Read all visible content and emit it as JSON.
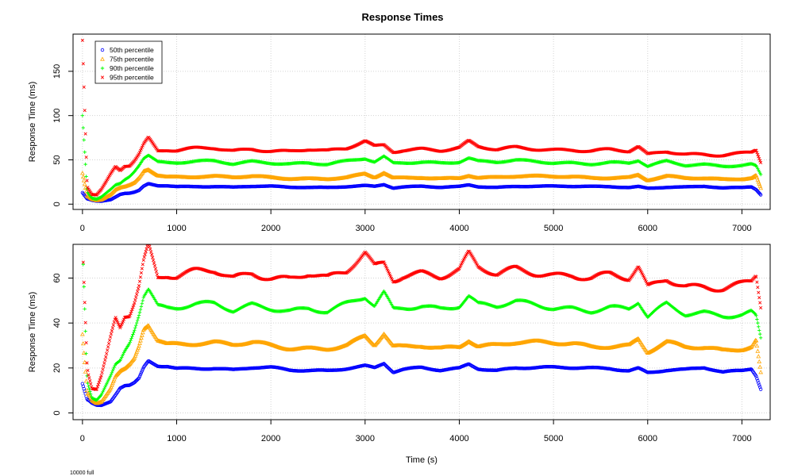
{
  "chart_data": [
    {
      "type": "scatter",
      "title": "Response Times",
      "xlabel": "",
      "ylabel": "Response Time (ms)",
      "xlim": [
        -100,
        7300
      ],
      "ylim": [
        -6,
        192
      ],
      "xticks": [
        0,
        1000,
        2000,
        3000,
        4000,
        5000,
        6000,
        7000
      ],
      "yticks": [
        0,
        50,
        100,
        150
      ],
      "grid": true,
      "legend_position": "top-left",
      "series": [
        {
          "name": "50th percentile",
          "color": "#0000ff",
          "marker": "circle",
          "x": [
            0,
            50,
            100,
            150,
            200,
            250,
            300,
            350,
            400,
            450,
            500,
            550,
            600,
            650,
            700,
            800,
            900,
            1000,
            1200,
            1400,
            1600,
            1800,
            2000,
            2200,
            2400,
            2600,
            2800,
            3000,
            3100,
            3200,
            3300,
            3400,
            3600,
            3800,
            4000,
            4100,
            4200,
            4400,
            4600,
            4800,
            5000,
            5200,
            5400,
            5600,
            5800,
            5900,
            6000,
            6200,
            6400,
            6600,
            6800,
            7000,
            7100,
            7150,
            7200
          ],
          "y": [
            13,
            6,
            4,
            3,
            3,
            4,
            5,
            8,
            11,
            12,
            12,
            13,
            15,
            20,
            23,
            21,
            21,
            20,
            20,
            20,
            19,
            20,
            20,
            19,
            19,
            19,
            20,
            21,
            20,
            22,
            18,
            19,
            20,
            19,
            20,
            22,
            20,
            19,
            20,
            20,
            20,
            20,
            20,
            20,
            19,
            20,
            18,
            19,
            19,
            20,
            18,
            19,
            20,
            17,
            11
          ]
        },
        {
          "name": "75th percentile",
          "color": "#ffa500",
          "marker": "triangle",
          "x": [
            0,
            50,
            100,
            150,
            200,
            250,
            300,
            350,
            400,
            450,
            500,
            550,
            600,
            650,
            700,
            800,
            900,
            1000,
            1200,
            1400,
            1600,
            1800,
            2000,
            2200,
            2400,
            2600,
            2800,
            3000,
            3100,
            3200,
            3300,
            3400,
            3600,
            3800,
            4000,
            4100,
            4200,
            4400,
            4600,
            4800,
            5000,
            5200,
            5400,
            5600,
            5800,
            5900,
            6000,
            6200,
            6400,
            6600,
            6800,
            7000,
            7100,
            7150,
            7200
          ],
          "y": [
            35,
            9,
            5,
            4,
            5,
            8,
            11,
            16,
            18,
            19,
            21,
            24,
            30,
            38,
            40,
            33,
            31,
            31,
            31,
            31,
            30,
            31,
            30,
            29,
            29,
            29,
            30,
            34,
            30,
            35,
            29,
            29,
            30,
            29,
            30,
            33,
            30,
            30,
            31,
            31,
            31,
            31,
            30,
            30,
            30,
            33,
            27,
            31,
            29,
            29,
            28,
            29,
            30,
            33,
            18
          ]
        },
        {
          "name": "90th percentile",
          "color": "#00ff00",
          "marker": "plus",
          "x": [
            0,
            50,
            100,
            150,
            200,
            250,
            300,
            350,
            400,
            450,
            500,
            550,
            600,
            650,
            700,
            800,
            900,
            1000,
            1200,
            1400,
            1600,
            1800,
            2000,
            2200,
            2400,
            2600,
            2800,
            3000,
            3100,
            3200,
            3300,
            3400,
            3600,
            3800,
            4000,
            4100,
            4200,
            4400,
            4600,
            4800,
            5000,
            5200,
            5400,
            5600,
            5800,
            5900,
            6000,
            6200,
            6400,
            6600,
            6800,
            7000,
            7100,
            7150,
            7200
          ],
          "y": [
            100,
            14,
            7,
            6,
            8,
            12,
            16,
            21,
            23,
            28,
            32,
            38,
            45,
            53,
            56,
            48,
            47,
            47,
            48,
            48,
            45,
            48,
            47,
            46,
            47,
            45,
            48,
            51,
            47,
            53,
            46,
            47,
            48,
            47,
            48,
            52,
            48,
            47,
            49,
            48,
            47,
            47,
            46,
            47,
            46,
            49,
            42,
            48,
            44,
            45,
            44,
            44,
            45,
            43,
            33
          ]
        },
        {
          "name": "95th percentile",
          "color": "#ff0000",
          "marker": "cross",
          "x": [
            0,
            50,
            100,
            150,
            200,
            250,
            300,
            350,
            400,
            450,
            500,
            550,
            600,
            650,
            700,
            800,
            900,
            1000,
            1200,
            1400,
            1600,
            1800,
            2000,
            2200,
            2400,
            2600,
            2800,
            3000,
            3100,
            3200,
            3300,
            3400,
            3600,
            3800,
            4000,
            4100,
            4200,
            4400,
            4600,
            4800,
            5000,
            5200,
            5400,
            5600,
            5800,
            5900,
            6000,
            6200,
            6400,
            6600,
            6800,
            7000,
            7100,
            7150,
            7200
          ],
          "y": [
            185,
            20,
            11,
            10,
            16,
            25,
            35,
            44,
            40,
            45,
            45,
            50,
            57,
            68,
            75,
            60,
            61,
            60,
            62,
            63,
            60,
            63,
            61,
            60,
            62,
            59,
            62,
            71,
            65,
            67,
            60,
            62,
            63,
            61,
            63,
            70,
            64,
            61,
            64,
            63,
            62,
            62,
            60,
            61,
            59,
            64,
            55,
            60,
            57,
            57,
            56,
            57,
            58,
            61,
            47
          ]
        }
      ]
    },
    {
      "type": "scatter",
      "title": "",
      "xlabel": "Time (s)",
      "ylabel": "Response Time (ms)",
      "xlim": [
        -100,
        7300
      ],
      "ylim": [
        -3,
        75
      ],
      "xticks": [
        0,
        1000,
        2000,
        3000,
        4000,
        5000,
        6000,
        7000
      ],
      "yticks": [
        0,
        20,
        40,
        60
      ],
      "grid": true,
      "series": [
        {
          "name": "50th percentile",
          "color": "#0000ff",
          "marker": "circle",
          "x": [
            0,
            50,
            100,
            150,
            200,
            250,
            300,
            350,
            400,
            450,
            500,
            550,
            600,
            650,
            700,
            800,
            900,
            1000,
            1200,
            1400,
            1600,
            1800,
            2000,
            2200,
            2400,
            2600,
            2800,
            3000,
            3100,
            3200,
            3300,
            3400,
            3600,
            3800,
            4000,
            4100,
            4200,
            4400,
            4600,
            4800,
            5000,
            5200,
            5400,
            5600,
            5800,
            5900,
            6000,
            6200,
            6400,
            6600,
            6800,
            7000,
            7100,
            7150,
            7200
          ],
          "y": [
            13,
            6,
            4,
            3,
            3,
            4,
            5,
            8,
            11,
            12,
            12,
            13,
            15,
            20,
            23,
            21,
            21,
            20,
            20,
            20,
            19,
            20,
            20,
            19,
            19,
            19,
            20,
            21,
            20,
            22,
            18,
            19,
            20,
            19,
            20,
            22,
            20,
            19,
            20,
            20,
            20,
            20,
            20,
            20,
            19,
            20,
            18,
            19,
            19,
            20,
            18,
            19,
            20,
            17,
            11
          ]
        },
        {
          "name": "75th percentile",
          "color": "#ffa500",
          "marker": "triangle",
          "x": [
            0,
            50,
            100,
            150,
            200,
            250,
            300,
            350,
            400,
            450,
            500,
            550,
            600,
            650,
            700,
            800,
            900,
            1000,
            1200,
            1400,
            1600,
            1800,
            2000,
            2200,
            2400,
            2600,
            2800,
            3000,
            3100,
            3200,
            3300,
            3400,
            3600,
            3800,
            4000,
            4100,
            4200,
            4400,
            4600,
            4800,
            5000,
            5200,
            5400,
            5600,
            5800,
            5900,
            6000,
            6200,
            6400,
            6600,
            6800,
            7000,
            7100,
            7150,
            7200
          ],
          "y": [
            35,
            9,
            5,
            4,
            5,
            8,
            11,
            16,
            18,
            19,
            21,
            24,
            30,
            38,
            40,
            33,
            31,
            31,
            31,
            31,
            30,
            31,
            30,
            29,
            29,
            29,
            30,
            34,
            30,
            35,
            29,
            29,
            30,
            29,
            30,
            33,
            30,
            30,
            31,
            31,
            31,
            31,
            30,
            30,
            30,
            33,
            27,
            31,
            29,
            29,
            28,
            29,
            30,
            33,
            18
          ]
        },
        {
          "name": "90th percentile",
          "color": "#00ff00",
          "marker": "plus",
          "x": [
            0,
            50,
            100,
            150,
            200,
            250,
            300,
            350,
            400,
            450,
            500,
            550,
            600,
            650,
            700,
            800,
            900,
            1000,
            1200,
            1400,
            1600,
            1800,
            2000,
            2200,
            2400,
            2600,
            2800,
            3000,
            3100,
            3200,
            3300,
            3400,
            3600,
            3800,
            4000,
            4100,
            4200,
            4400,
            4600,
            4800,
            5000,
            5200,
            5400,
            5600,
            5800,
            5900,
            6000,
            6200,
            6400,
            6600,
            6800,
            7000,
            7100,
            7150,
            7200
          ],
          "y": [
            76,
            14,
            7,
            6,
            8,
            12,
            16,
            21,
            23,
            28,
            32,
            38,
            45,
            53,
            56,
            48,
            47,
            47,
            48,
            48,
            45,
            48,
            47,
            46,
            47,
            45,
            48,
            51,
            47,
            53,
            46,
            47,
            48,
            47,
            48,
            52,
            48,
            47,
            49,
            48,
            47,
            47,
            46,
            47,
            46,
            49,
            42,
            48,
            44,
            45,
            44,
            44,
            45,
            43,
            33
          ]
        },
        {
          "name": "95th percentile",
          "color": "#ff0000",
          "marker": "cross",
          "x": [
            0,
            50,
            100,
            150,
            200,
            250,
            300,
            350,
            400,
            450,
            500,
            550,
            600,
            650,
            700,
            800,
            900,
            1000,
            1200,
            1400,
            1600,
            1800,
            2000,
            2200,
            2400,
            2600,
            2800,
            3000,
            3100,
            3200,
            3300,
            3400,
            3600,
            3800,
            4000,
            4100,
            4200,
            4400,
            4600,
            4800,
            5000,
            5200,
            5400,
            5600,
            5800,
            5900,
            6000,
            6200,
            6400,
            6600,
            6800,
            7000,
            7100,
            7150,
            7200
          ],
          "y": [
            76,
            20,
            11,
            10,
            16,
            25,
            35,
            44,
            40,
            45,
            45,
            50,
            57,
            68,
            75,
            60,
            61,
            60,
            62,
            63,
            60,
            63,
            61,
            60,
            62,
            59,
            62,
            71,
            65,
            67,
            60,
            62,
            63,
            61,
            63,
            70,
            64,
            61,
            64,
            63,
            62,
            62,
            60,
            61,
            59,
            64,
            55,
            60,
            57,
            57,
            56,
            57,
            58,
            61,
            47
          ]
        }
      ]
    }
  ],
  "footnote": "10000 full"
}
